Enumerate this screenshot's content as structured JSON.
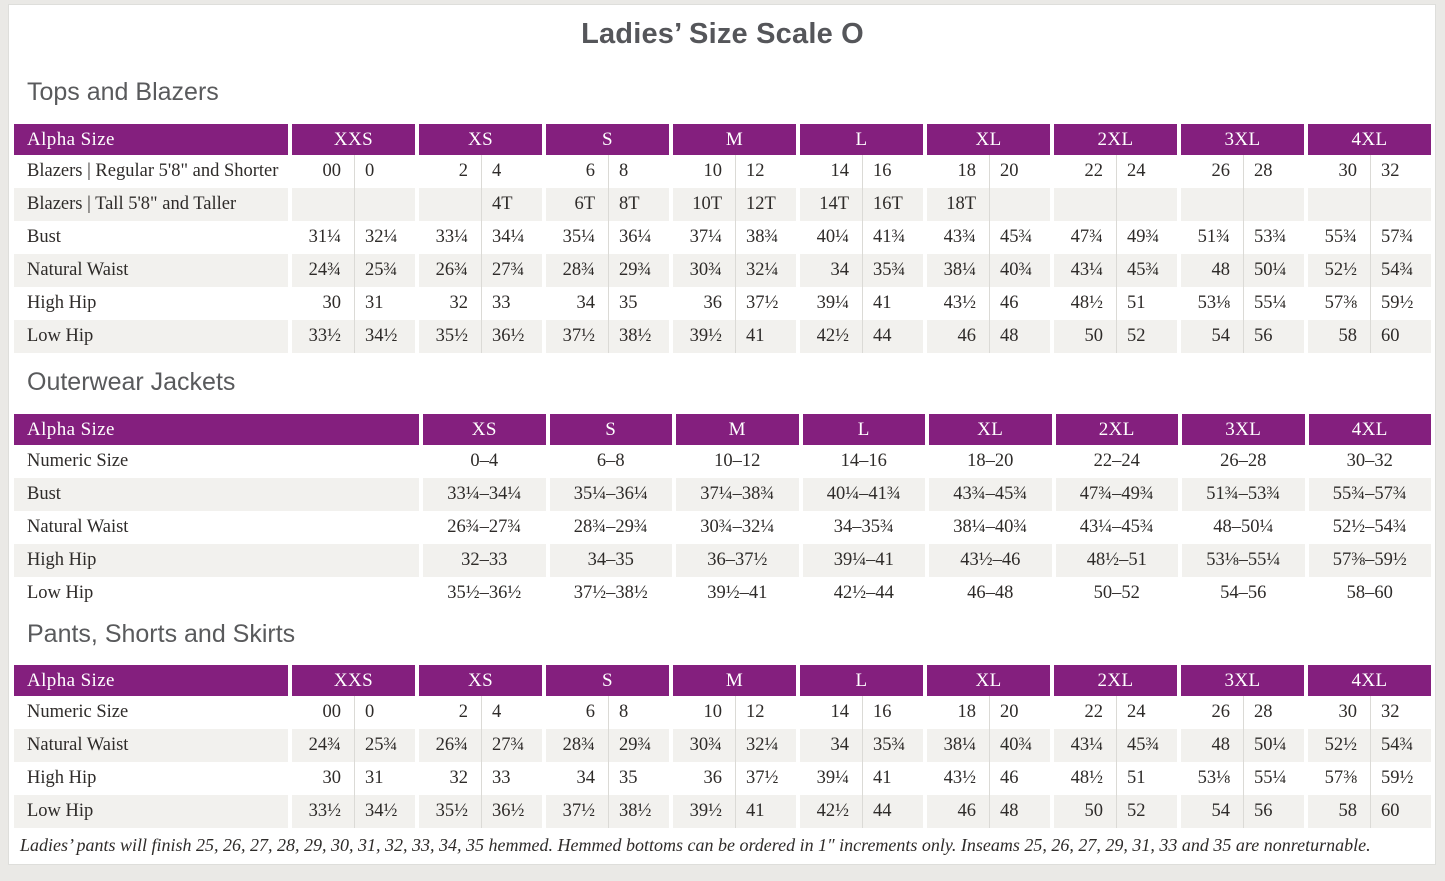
{
  "page": {
    "title": "Ladies’ Size Scale O",
    "footnote": "Ladies’ pants will finish 25, 26, 27, 28, 29, 30, 31, 32, 33, 34, 35 hemmed. Hemmed bottoms can be ordered in 1″ increments only. Inseams 25, 26, 27, 29, 31, 33 and 35 are nonreturnable."
  },
  "colors": {
    "accent_purple": "#841f7e",
    "stripe_gray": "#f2f1ee",
    "heading_gray": "#595a5c"
  },
  "sections": [
    {
      "heading": "Tops and Blazers",
      "type": "paired",
      "header_label": "Alpha Size",
      "columns": [
        "XXS",
        "XS",
        "S",
        "M",
        "L",
        "XL",
        "2XL",
        "3XL",
        "4XL"
      ],
      "rows": [
        {
          "label": "Blazers | Regular 5'8\" and Shorter",
          "pairs": [
            [
              "00",
              "0"
            ],
            [
              "2",
              "4"
            ],
            [
              "6",
              "8"
            ],
            [
              "10",
              "12"
            ],
            [
              "14",
              "16"
            ],
            [
              "18",
              "20"
            ],
            [
              "22",
              "24"
            ],
            [
              "26",
              "28"
            ],
            [
              "30",
              "32"
            ]
          ]
        },
        {
          "label": "Blazers | Tall 5'8\" and Taller",
          "pairs": [
            [
              "",
              ""
            ],
            [
              "",
              "4T"
            ],
            [
              "6T",
              "8T"
            ],
            [
              "10T",
              "12T"
            ],
            [
              "14T",
              "16T"
            ],
            [
              "18T",
              ""
            ],
            [
              "",
              ""
            ],
            [
              "",
              ""
            ],
            [
              "",
              ""
            ]
          ]
        },
        {
          "label": "Bust",
          "pairs": [
            [
              "31¼",
              "32¼"
            ],
            [
              "33¼",
              "34¼"
            ],
            [
              "35¼",
              "36¼"
            ],
            [
              "37¼",
              "38¾"
            ],
            [
              "40¼",
              "41¾"
            ],
            [
              "43¾",
              "45¾"
            ],
            [
              "47¾",
              "49¾"
            ],
            [
              "51¾",
              "53¾"
            ],
            [
              "55¾",
              "57¾"
            ]
          ]
        },
        {
          "label": "Natural Waist",
          "pairs": [
            [
              "24¾",
              "25¾"
            ],
            [
              "26¾",
              "27¾"
            ],
            [
              "28¾",
              "29¾"
            ],
            [
              "30¾",
              "32¼"
            ],
            [
              "34",
              "35¾"
            ],
            [
              "38¼",
              "40¾"
            ],
            [
              "43¼",
              "45¾"
            ],
            [
              "48",
              "50¼"
            ],
            [
              "52½",
              "54¾"
            ]
          ]
        },
        {
          "label": "High Hip",
          "pairs": [
            [
              "30",
              "31"
            ],
            [
              "32",
              "33"
            ],
            [
              "34",
              "35"
            ],
            [
              "36",
              "37½"
            ],
            [
              "39¼",
              "41"
            ],
            [
              "43½",
              "46"
            ],
            [
              "48½",
              "51"
            ],
            [
              "53⅛",
              "55¼"
            ],
            [
              "57⅜",
              "59½"
            ]
          ]
        },
        {
          "label": "Low Hip",
          "pairs": [
            [
              "33½",
              "34½"
            ],
            [
              "35½",
              "36½"
            ],
            [
              "37½",
              "38½"
            ],
            [
              "39½",
              "41"
            ],
            [
              "42½",
              "44"
            ],
            [
              "46",
              "48"
            ],
            [
              "50",
              "52"
            ],
            [
              "54",
              "56"
            ],
            [
              "58",
              "60"
            ]
          ]
        }
      ]
    },
    {
      "heading": "Outerwear Jackets",
      "type": "range",
      "header_label": "Alpha Size",
      "columns": [
        "XS",
        "S",
        "M",
        "L",
        "XL",
        "2XL",
        "3XL",
        "4XL"
      ],
      "rows": [
        {
          "label": "Numeric Size",
          "values": [
            "0–4",
            "6–8",
            "10–12",
            "14–16",
            "18–20",
            "22–24",
            "26–28",
            "30–32"
          ]
        },
        {
          "label": "Bust",
          "values": [
            "33¼–34¼",
            "35¼–36¼",
            "37¼–38¾",
            "40¼–41¾",
            "43¾–45¾",
            "47¾–49¾",
            "51¾–53¾",
            "55¾–57¾"
          ]
        },
        {
          "label": "Natural Waist",
          "values": [
            "26¾–27¾",
            "28¾–29¾",
            "30¾–32¼",
            "34–35¾",
            "38¼–40¾",
            "43¼–45¾",
            "48–50¼",
            "52½–54¾"
          ]
        },
        {
          "label": "High Hip",
          "values": [
            "32–33",
            "34–35",
            "36–37½",
            "39¼–41",
            "43½–46",
            "48½–51",
            "53⅛–55¼",
            "57⅜–59½"
          ]
        },
        {
          "label": "Low Hip",
          "values": [
            "35½–36½",
            "37½–38½",
            "39½–41",
            "42½–44",
            "46–48",
            "50–52",
            "54–56",
            "58–60"
          ]
        }
      ]
    },
    {
      "heading": "Pants, Shorts and Skirts",
      "type": "paired",
      "header_label": "Alpha Size",
      "columns": [
        "XXS",
        "XS",
        "S",
        "M",
        "L",
        "XL",
        "2XL",
        "3XL",
        "4XL"
      ],
      "rows": [
        {
          "label": "Numeric Size",
          "pairs": [
            [
              "00",
              "0"
            ],
            [
              "2",
              "4"
            ],
            [
              "6",
              "8"
            ],
            [
              "10",
              "12"
            ],
            [
              "14",
              "16"
            ],
            [
              "18",
              "20"
            ],
            [
              "22",
              "24"
            ],
            [
              "26",
              "28"
            ],
            [
              "30",
              "32"
            ]
          ]
        },
        {
          "label": "Natural Waist",
          "pairs": [
            [
              "24¾",
              "25¾"
            ],
            [
              "26¾",
              "27¾"
            ],
            [
              "28¾",
              "29¾"
            ],
            [
              "30¾",
              "32¼"
            ],
            [
              "34",
              "35¾"
            ],
            [
              "38¼",
              "40¾"
            ],
            [
              "43¼",
              "45¾"
            ],
            [
              "48",
              "50¼"
            ],
            [
              "52½",
              "54¾"
            ]
          ]
        },
        {
          "label": "High Hip",
          "pairs": [
            [
              "30",
              "31"
            ],
            [
              "32",
              "33"
            ],
            [
              "34",
              "35"
            ],
            [
              "36",
              "37½"
            ],
            [
              "39¼",
              "41"
            ],
            [
              "43½",
              "46"
            ],
            [
              "48½",
              "51"
            ],
            [
              "53⅛",
              "55¼"
            ],
            [
              "57⅜",
              "59½"
            ]
          ]
        },
        {
          "label": "Low Hip",
          "pairs": [
            [
              "33½",
              "34½"
            ],
            [
              "35½",
              "36½"
            ],
            [
              "37½",
              "38½"
            ],
            [
              "39½",
              "41"
            ],
            [
              "42½",
              "44"
            ],
            [
              "46",
              "48"
            ],
            [
              "50",
              "52"
            ],
            [
              "54",
              "56"
            ],
            [
              "58",
              "60"
            ]
          ]
        }
      ]
    }
  ]
}
